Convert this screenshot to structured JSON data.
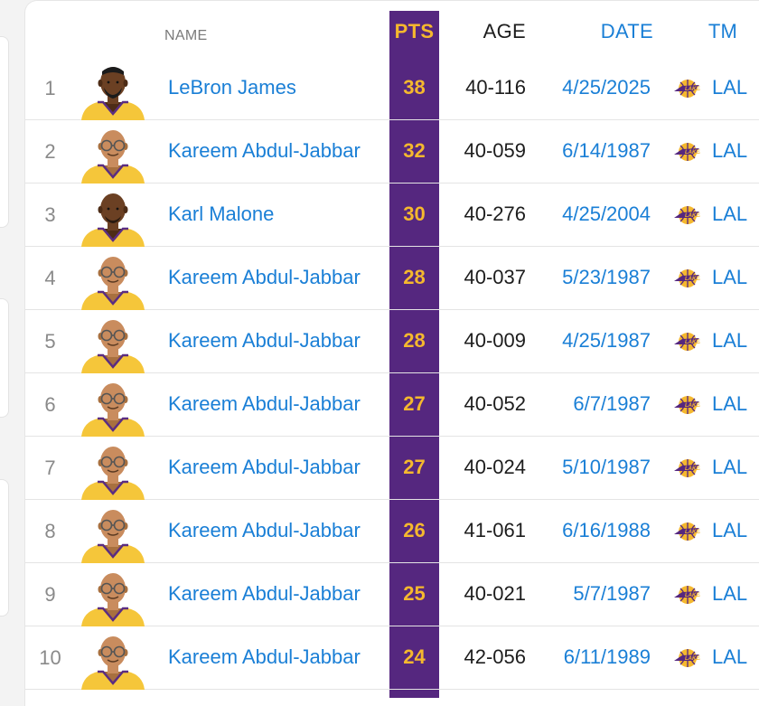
{
  "colors": {
    "pts_column": "#55277f",
    "pts_text": "#f5b82e",
    "link": "#1a7fd6"
  },
  "header": {
    "name": "NAME",
    "pts": "PTS",
    "age": "AGE",
    "date": "DATE",
    "tm": "TM"
  },
  "rows": [
    {
      "rank": "1",
      "name": "LeBron James",
      "pts": "38",
      "age": "40-116",
      "date": "4/25/2025",
      "tm": "LAL",
      "player": "lebron",
      "team_icon": "lakers-logo-icon"
    },
    {
      "rank": "2",
      "name": "Kareem Abdul-Jabbar",
      "pts": "32",
      "age": "40-059",
      "date": "6/14/1987",
      "tm": "LAL",
      "player": "kareem",
      "team_icon": "lakers-logo-icon"
    },
    {
      "rank": "3",
      "name": "Karl Malone",
      "pts": "30",
      "age": "40-276",
      "date": "4/25/2004",
      "tm": "LAL",
      "player": "malone",
      "team_icon": "lakers-logo-icon"
    },
    {
      "rank": "4",
      "name": "Kareem Abdul-Jabbar",
      "pts": "28",
      "age": "40-037",
      "date": "5/23/1987",
      "tm": "LAL",
      "player": "kareem",
      "team_icon": "lakers-logo-icon"
    },
    {
      "rank": "5",
      "name": "Kareem Abdul-Jabbar",
      "pts": "28",
      "age": "40-009",
      "date": "4/25/1987",
      "tm": "LAL",
      "player": "kareem",
      "team_icon": "lakers-logo-icon"
    },
    {
      "rank": "6",
      "name": "Kareem Abdul-Jabbar",
      "pts": "27",
      "age": "40-052",
      "date": "6/7/1987",
      "tm": "LAL",
      "player": "kareem",
      "team_icon": "lakers-logo-icon"
    },
    {
      "rank": "7",
      "name": "Kareem Abdul-Jabbar",
      "pts": "27",
      "age": "40-024",
      "date": "5/10/1987",
      "tm": "LAL",
      "player": "kareem",
      "team_icon": "lakers-logo-icon"
    },
    {
      "rank": "8",
      "name": "Kareem Abdul-Jabbar",
      "pts": "26",
      "age": "41-061",
      "date": "6/16/1988",
      "tm": "LAL",
      "player": "kareem",
      "team_icon": "lakers-logo-icon"
    },
    {
      "rank": "9",
      "name": "Kareem Abdul-Jabbar",
      "pts": "25",
      "age": "40-021",
      "date": "5/7/1987",
      "tm": "LAL",
      "player": "kareem",
      "team_icon": "lakers-logo-icon"
    },
    {
      "rank": "10",
      "name": "Kareem Abdul-Jabbar",
      "pts": "24",
      "age": "42-056",
      "date": "6/11/1989",
      "tm": "LAL",
      "player": "kareem",
      "team_icon": "lakers-logo-icon"
    }
  ]
}
